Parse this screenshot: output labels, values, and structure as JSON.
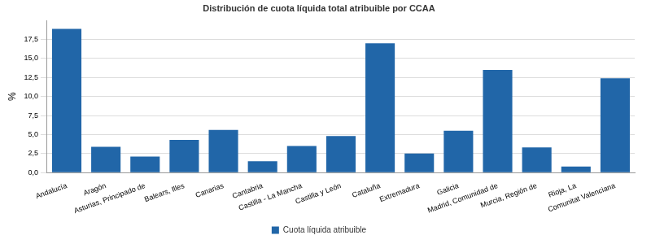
{
  "chart_data": {
    "type": "bar",
    "title": "Distribución de cuota líquida total atribuible por CCAA",
    "y_label": "%",
    "categories": [
      "Andalucía",
      "Aragón",
      "Asturias, Principado de",
      "Balears, Illes",
      "Canarias",
      "Cantabria",
      "Castilla - La Mancha",
      "Castilla y León",
      "Cataluña",
      "Extremadura",
      "Galicia",
      "Madrid, Comunidad de",
      "Murcia, Región de",
      "Rioja, La",
      "Comunitat Valenciana"
    ],
    "series": [
      {
        "name": "Cuota líquida atribuible",
        "color": "#2166a8",
        "values": [
          18.9,
          3.4,
          2.1,
          4.3,
          5.6,
          1.5,
          3.5,
          4.8,
          17.0,
          2.5,
          5.5,
          13.5,
          3.3,
          0.8,
          12.4
        ]
      }
    ],
    "ylim": [
      0,
      20
    ],
    "yticks": [
      {
        "value": 0,
        "label": "0,0"
      },
      {
        "value": 2.5,
        "label": "2,5"
      },
      {
        "value": 5,
        "label": "5,0"
      },
      {
        "value": 7.5,
        "label": "7,5"
      },
      {
        "value": 10,
        "label": "10,0"
      },
      {
        "value": 12.5,
        "label": "12,5"
      },
      {
        "value": 15,
        "label": "15,0"
      },
      {
        "value": 17.5,
        "label": "17,5"
      }
    ],
    "grid": true,
    "legend": "bottom"
  }
}
